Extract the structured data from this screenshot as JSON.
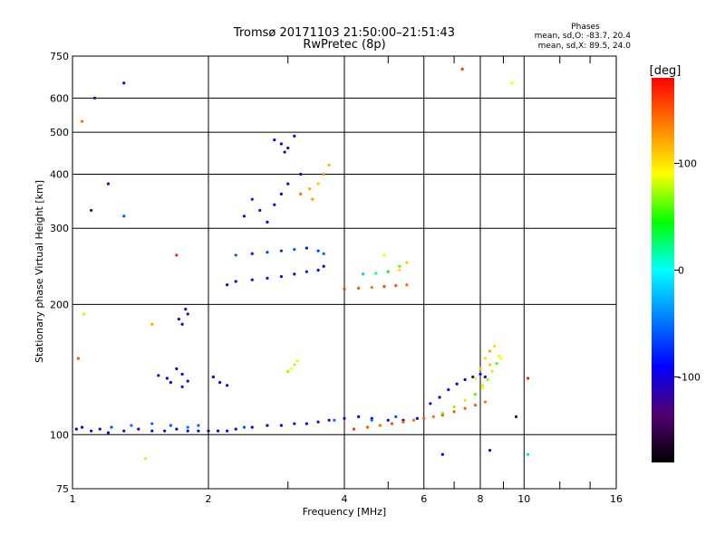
{
  "chart_data": {
    "type": "scatter",
    "title": "Tromsø 20171103 21:50:00–21:51:43",
    "subtitle": "RwPretec (8p)",
    "xlabel": "Frequency [MHz]",
    "ylabel": "Stationary phase Virtual Height [km]",
    "x_scale": "log",
    "y_scale": "log",
    "xlim": [
      1,
      16
    ],
    "ylim": [
      75,
      750
    ],
    "x_ticks": [
      1,
      2,
      4,
      6,
      8,
      10,
      16
    ],
    "x_tick_labels": [
      "1",
      "2",
      "4",
      "6",
      "8",
      "10",
      "16"
    ],
    "x_minor_ticks": [
      3,
      5,
      7,
      9,
      12,
      14
    ],
    "y_ticks": [
      75,
      100,
      200,
      300,
      400,
      500,
      600,
      750
    ],
    "y_tick_labels": [
      "75",
      "100",
      "200",
      "300",
      "400",
      "500",
      "600",
      "750"
    ],
    "grid": true,
    "legend_position": "top-right",
    "legend": {
      "title": "Phases",
      "line1": "mean, sd,O:  -83.7, 20.4",
      "line2": "mean, sd,X:  89.5, 24.0"
    },
    "colorbar": {
      "label": "[deg]",
      "min": -180,
      "max": 180,
      "ticks": [
        100,
        0,
        -100
      ],
      "tick_labels": [
        "100",
        "0",
        "-100"
      ],
      "colormap": [
        "#000000",
        "#500070",
        "#0000ff",
        "#0080ff",
        "#00ffff",
        "#00ff00",
        "#ffff00",
        "#ff8000",
        "#ff0000"
      ]
    },
    "series": [
      {
        "points": [
          [
            1.02,
            103,
            -100
          ],
          [
            1.05,
            104,
            -110
          ],
          [
            1.1,
            102,
            -90
          ],
          [
            1.15,
            103,
            -105
          ],
          [
            1.2,
            101,
            -95
          ],
          [
            1.3,
            102,
            -100
          ],
          [
            1.4,
            103,
            -110
          ],
          [
            1.5,
            102,
            -90
          ],
          [
            1.6,
            102,
            -100
          ],
          [
            1.7,
            103,
            -105
          ],
          [
            1.8,
            102,
            -95
          ],
          [
            1.9,
            102,
            -100
          ],
          [
            2.0,
            102,
            -110
          ],
          [
            2.1,
            102,
            -90
          ],
          [
            2.2,
            102,
            -100
          ],
          [
            2.3,
            103,
            -95
          ],
          [
            2.5,
            104,
            -100
          ],
          [
            2.7,
            105,
            -110
          ],
          [
            2.9,
            105,
            -90
          ],
          [
            3.1,
            106,
            -100
          ],
          [
            3.3,
            106,
            -95
          ],
          [
            3.5,
            107,
            -110
          ],
          [
            3.7,
            108,
            -100
          ],
          [
            4.0,
            109,
            -105
          ],
          [
            4.3,
            110,
            -95
          ],
          [
            4.6,
            109,
            -100
          ],
          [
            5.0,
            108,
            -100
          ],
          [
            5.4,
            108,
            -110
          ],
          [
            5.8,
            109,
            -95
          ]
        ]
      },
      {
        "points": [
          [
            1.22,
            104,
            -60
          ],
          [
            1.35,
            105,
            -50
          ],
          [
            1.5,
            106,
            -55
          ],
          [
            1.65,
            105,
            -60
          ],
          [
            1.8,
            104,
            -50
          ],
          [
            1.9,
            105,
            -55
          ],
          [
            2.4,
            104,
            -60
          ],
          [
            3.8,
            108,
            -55
          ],
          [
            4.6,
            108,
            -50
          ],
          [
            5.2,
            110,
            -60
          ]
        ]
      },
      {
        "points": [
          [
            4.2,
            103,
            160
          ],
          [
            4.5,
            104,
            150
          ],
          [
            4.8,
            105,
            140
          ],
          [
            5.1,
            106,
            155
          ],
          [
            5.4,
            107,
            150
          ],
          [
            5.7,
            108,
            145
          ],
          [
            6.0,
            109,
            150
          ],
          [
            6.3,
            110,
            140
          ],
          [
            6.6,
            111,
            155
          ],
          [
            7.0,
            113,
            150
          ],
          [
            7.4,
            115,
            145
          ],
          [
            7.8,
            117,
            150
          ],
          [
            8.2,
            119,
            140
          ]
        ]
      },
      {
        "points": [
          [
            6.2,
            118,
            -100
          ],
          [
            6.5,
            122,
            -110
          ],
          [
            6.8,
            127,
            -90
          ],
          [
            7.1,
            131,
            -100
          ],
          [
            7.4,
            134,
            -105
          ],
          [
            7.7,
            136,
            -95
          ],
          [
            8.0,
            138,
            -100
          ],
          [
            8.2,
            136,
            -110
          ]
        ]
      },
      {
        "points": [
          [
            6.6,
            112,
            60
          ],
          [
            7.0,
            116,
            70
          ],
          [
            7.4,
            120,
            80
          ],
          [
            7.8,
            124,
            60
          ],
          [
            8.1,
            128,
            90
          ],
          [
            8.3,
            134,
            70
          ],
          [
            8.5,
            140,
            80
          ],
          [
            8.7,
            146,
            60
          ],
          [
            8.9,
            150,
            90
          ]
        ]
      },
      {
        "points": [
          [
            7.8,
            135,
            95
          ],
          [
            8.0,
            142,
            110
          ],
          [
            8.2,
            150,
            100
          ],
          [
            8.4,
            156,
            120
          ],
          [
            8.6,
            160,
            105
          ],
          [
            8.8,
            152,
            95
          ],
          [
            8.4,
            145,
            110
          ],
          [
            8.1,
            130,
            100
          ]
        ]
      },
      {
        "points": [
          [
            1.55,
            137,
            -100
          ],
          [
            1.65,
            132,
            -90
          ],
          [
            1.75,
            129,
            -110
          ],
          [
            1.8,
            133,
            -100
          ],
          [
            1.75,
            138,
            -95
          ],
          [
            1.7,
            142,
            -100
          ],
          [
            1.62,
            135,
            -105
          ],
          [
            2.05,
            136,
            -90
          ],
          [
            2.12,
            132,
            -100
          ],
          [
            2.2,
            130,
            -110
          ]
        ]
      },
      {
        "points": [
          [
            2.3,
            226,
            -90
          ],
          [
            2.5,
            228,
            -100
          ],
          [
            2.7,
            230,
            -85
          ],
          [
            2.9,
            232,
            -95
          ],
          [
            3.1,
            235,
            -110
          ],
          [
            3.3,
            238,
            -80
          ],
          [
            3.5,
            240,
            -90
          ],
          [
            2.2,
            222,
            -100
          ],
          [
            3.6,
            245,
            -85
          ]
        ]
      },
      {
        "points": [
          [
            2.3,
            260,
            -60
          ],
          [
            2.5,
            262,
            -80
          ],
          [
            2.7,
            264,
            -65
          ],
          [
            2.9,
            266,
            -75
          ],
          [
            3.1,
            268,
            -60
          ],
          [
            3.3,
            270,
            -85
          ],
          [
            3.5,
            266,
            -70
          ],
          [
            3.6,
            262,
            -55
          ]
        ]
      },
      {
        "points": [
          [
            2.4,
            320,
            -100
          ],
          [
            2.6,
            330,
            -110
          ],
          [
            2.8,
            340,
            -90
          ],
          [
            2.9,
            360,
            -100
          ],
          [
            3.0,
            380,
            -105
          ],
          [
            3.2,
            400,
            -95
          ],
          [
            2.7,
            310,
            -100
          ],
          [
            2.5,
            350,
            -80
          ]
        ]
      },
      {
        "points": [
          [
            3.2,
            360,
            140
          ],
          [
            3.35,
            370,
            120
          ],
          [
            3.5,
            380,
            110
          ],
          [
            3.6,
            400,
            130
          ],
          [
            3.7,
            420,
            115
          ],
          [
            3.4,
            350,
            125
          ]
        ]
      },
      {
        "points": [
          [
            2.8,
            480,
            -100
          ],
          [
            2.9,
            470,
            -90
          ],
          [
            3.0,
            460,
            -110
          ],
          [
            2.95,
            450,
            -100
          ],
          [
            3.1,
            490,
            -95
          ]
        ]
      },
      {
        "points": [
          [
            4.3,
            218,
            150
          ],
          [
            4.6,
            219,
            140
          ],
          [
            4.9,
            220,
            155
          ],
          [
            5.2,
            221,
            150
          ],
          [
            5.5,
            222,
            145
          ],
          [
            4.0,
            217,
            160
          ]
        ]
      },
      {
        "points": [
          [
            4.4,
            235,
            -20
          ],
          [
            4.7,
            236,
            20
          ],
          [
            5.0,
            238,
            40
          ],
          [
            5.3,
            240,
            100
          ],
          [
            5.5,
            250,
            110
          ],
          [
            4.9,
            260,
            95
          ],
          [
            5.3,
            245,
            60
          ]
        ]
      },
      {
        "points": [
          [
            1.75,
            180,
            -120
          ],
          [
            1.8,
            190,
            -110
          ],
          [
            1.72,
            185,
            -125
          ],
          [
            1.78,
            195,
            -115
          ]
        ]
      },
      {
        "points": [
          [
            3.05,
            142,
            90
          ],
          [
            3.1,
            145,
            80
          ],
          [
            3.15,
            148,
            95
          ],
          [
            3.0,
            140,
            70
          ]
        ]
      },
      {
        "points": [
          [
            1.12,
            600,
            -130
          ],
          [
            1.3,
            650,
            -100
          ],
          [
            1.05,
            530,
            140
          ],
          [
            1.2,
            380,
            -120
          ],
          [
            1.1,
            330,
            -140
          ],
          [
            7.3,
            700,
            160
          ],
          [
            9.4,
            650,
            90
          ],
          [
            1.3,
            320,
            -60
          ],
          [
            1.7,
            260,
            170
          ],
          [
            1.06,
            190,
            80
          ],
          [
            1.03,
            150,
            150
          ],
          [
            1.5,
            180,
            120
          ],
          [
            9.6,
            110,
            -130
          ],
          [
            6.6,
            90,
            -100
          ],
          [
            10.2,
            90,
            -10
          ],
          [
            1.45,
            88,
            100
          ],
          [
            10.2,
            135,
            170
          ],
          [
            8.4,
            92,
            -110
          ]
        ]
      }
    ]
  }
}
